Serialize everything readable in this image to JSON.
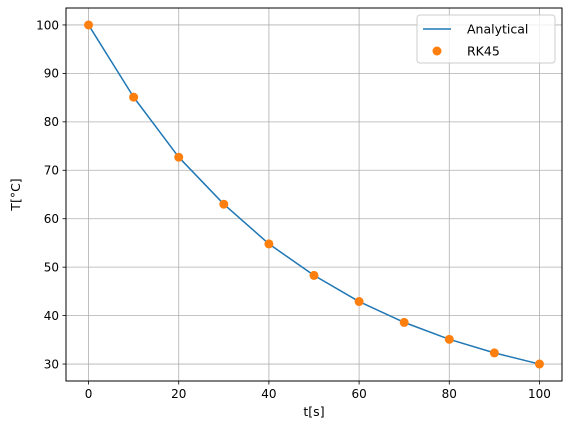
{
  "chart_data": {
    "type": "line",
    "title": "",
    "xlabel": "t[s]",
    "ylabel": "T[°C]",
    "xlim": [
      -5,
      105
    ],
    "ylim": [
      26.5,
      103.5
    ],
    "xticks": [
      0,
      20,
      40,
      60,
      80,
      100
    ],
    "yticks": [
      30,
      40,
      50,
      60,
      70,
      80,
      90,
      100
    ],
    "grid": true,
    "legend_position": "top-right",
    "series": [
      {
        "name": "Analytical",
        "style": "line",
        "color": "#1f77b4",
        "x": [
          0,
          10,
          20,
          30,
          40,
          50,
          60,
          70,
          80,
          90,
          100
        ],
        "y": [
          100,
          85.1,
          72.7,
          63.0,
          54.8,
          48.3,
          42.9,
          38.6,
          35.1,
          32.3,
          30.0
        ]
      },
      {
        "name": "RK45",
        "style": "markers",
        "color": "#ff7f0e",
        "x": [
          0,
          10,
          20,
          30,
          40,
          50,
          60,
          70,
          80,
          90,
          100
        ],
        "y": [
          100,
          85.1,
          72.7,
          63.0,
          54.8,
          48.3,
          42.9,
          38.6,
          35.1,
          32.3,
          30.0
        ]
      }
    ]
  }
}
